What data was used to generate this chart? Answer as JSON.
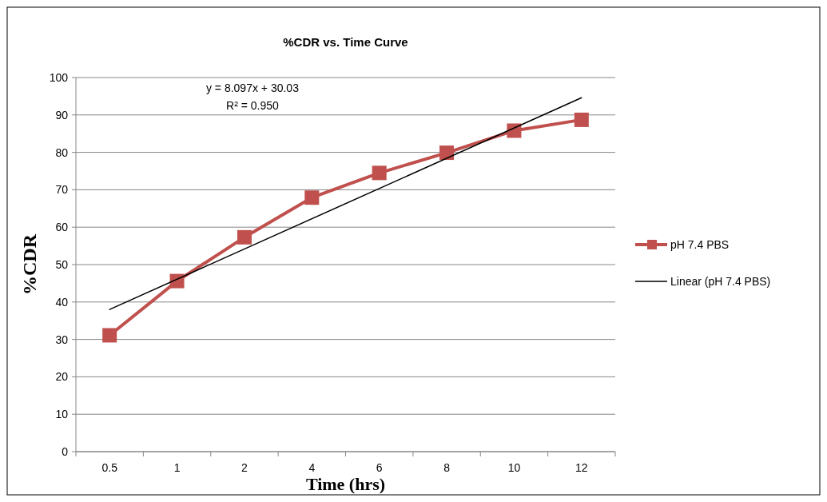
{
  "chart_data": {
    "type": "line",
    "title": "%CDR vs. Time Curve",
    "xlabel": "Time (hrs)",
    "ylabel": "%CDR",
    "categories": [
      "0.5",
      "1",
      "2",
      "4",
      "6",
      "8",
      "10",
      "12"
    ],
    "series": [
      {
        "name": "pH 7.4 PBS",
        "color": "#c0504d",
        "marker": "square",
        "values": [
          31.1,
          45.6,
          57.3,
          67.9,
          74.5,
          79.9,
          85.8,
          88.7
        ]
      },
      {
        "name": "Linear (pH 7.4 PBS)",
        "color": "#000000",
        "marker": "none",
        "x": [
          "0.5",
          "12"
        ],
        "values": [
          38.0,
          94.6
        ]
      }
    ],
    "annotations": [
      "y = 8.097x + 30.03",
      "R² = 0.950"
    ],
    "ylim": [
      0,
      100
    ],
    "yticks": [
      0,
      10,
      20,
      30,
      40,
      50,
      60,
      70,
      80,
      90,
      100
    ],
    "grid": "y",
    "legend": "right"
  }
}
